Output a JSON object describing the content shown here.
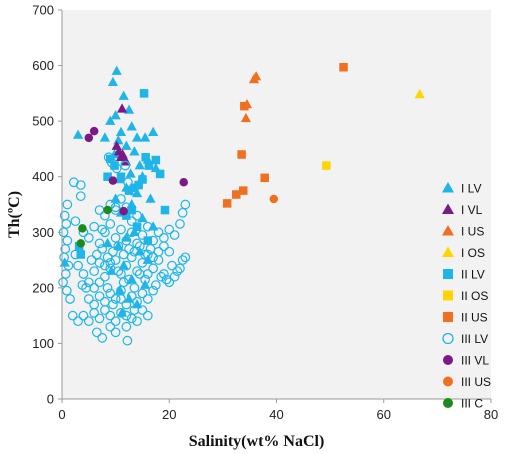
{
  "chart_data": {
    "type": "scatter",
    "title": "",
    "xlabel": "Salinity(wt% NaCl)",
    "ylabel": "Th(ºC)",
    "xlim": [
      0,
      80
    ],
    "ylim": [
      0,
      700
    ],
    "xticks": [
      0,
      20,
      40,
      60,
      80
    ],
    "yticks": [
      0,
      100,
      200,
      300,
      400,
      500,
      600,
      700
    ],
    "grid": false,
    "legend_position": "right",
    "plot_background": "#f2f2f2",
    "series": [
      {
        "name": "I LV",
        "marker": "triangle",
        "filled": true,
        "color": "#1fb5e8",
        "points": [
          [
            9.5,
            570
          ],
          [
            10.2,
            590
          ],
          [
            11.5,
            545
          ],
          [
            12.5,
            520
          ],
          [
            9,
            500
          ],
          [
            10,
            510
          ],
          [
            11,
            480
          ],
          [
            13,
            490
          ],
          [
            8,
            470
          ],
          [
            14,
            470
          ],
          [
            3,
            475
          ],
          [
            10.5,
            465
          ],
          [
            12,
            455
          ],
          [
            15.5,
            470
          ],
          [
            17,
            480
          ],
          [
            13.5,
            445
          ],
          [
            16,
            430
          ],
          [
            9.8,
            440
          ],
          [
            11.8,
            430
          ],
          [
            14.5,
            420
          ],
          [
            10.8,
            395
          ],
          [
            12.8,
            405
          ],
          [
            15,
            400
          ],
          [
            17.5,
            415
          ],
          [
            12,
            380
          ],
          [
            14,
            370
          ],
          [
            10,
            360
          ],
          [
            16.5,
            360
          ],
          [
            13,
            350
          ],
          [
            11,
            335
          ],
          [
            15,
            325
          ],
          [
            17,
            310
          ],
          [
            13.5,
            300
          ],
          [
            12,
            290
          ],
          [
            10.5,
            275
          ],
          [
            8.5,
            280
          ],
          [
            14.5,
            265
          ],
          [
            16,
            250
          ],
          [
            11.5,
            240
          ],
          [
            9.2,
            230
          ],
          [
            13,
            215
          ],
          [
            15.5,
            205
          ],
          [
            10.8,
            195
          ],
          [
            12.5,
            180
          ],
          [
            14,
            170
          ],
          [
            11.2,
            155
          ],
          [
            0.5,
            245
          ]
        ]
      },
      {
        "name": "I VL",
        "marker": "triangle",
        "filled": true,
        "color": "#7b1a86",
        "points": [
          [
            10.2,
            455
          ],
          [
            10.6,
            445
          ],
          [
            11,
            435
          ],
          [
            11.3,
            440
          ],
          [
            11.9,
            427
          ],
          [
            11.2,
            522
          ]
        ]
      },
      {
        "name": "I US",
        "marker": "triangle",
        "filled": true,
        "color": "#f07020",
        "points": [
          [
            34.3,
            505
          ],
          [
            34.5,
            530
          ],
          [
            35.8,
            575
          ],
          [
            36.2,
            580
          ]
        ]
      },
      {
        "name": "I OS",
        "marker": "triangle",
        "filled": true,
        "color": "#ffd400",
        "points": [
          [
            66.7,
            548
          ]
        ]
      },
      {
        "name": "II LV",
        "marker": "square",
        "filled": true,
        "color": "#1fb5e8",
        "points": [
          [
            15.3,
            550
          ],
          [
            3.5,
            260
          ],
          [
            3.2,
            275
          ],
          [
            8.5,
            400
          ],
          [
            9,
            432
          ],
          [
            9.8,
            420
          ],
          [
            11,
            400
          ],
          [
            12.5,
            375
          ],
          [
            13.5,
            380
          ],
          [
            14.3,
            385
          ],
          [
            15,
            395
          ],
          [
            15.6,
            435
          ],
          [
            16.2,
            420
          ],
          [
            17.5,
            430
          ],
          [
            18.3,
            405
          ],
          [
            13,
            340
          ],
          [
            12,
            330
          ],
          [
            14,
            310
          ],
          [
            16,
            285
          ],
          [
            19.2,
            340
          ]
        ]
      },
      {
        "name": "II OS",
        "marker": "square",
        "filled": true,
        "color": "#ffd400",
        "points": [
          [
            49.3,
            420
          ]
        ]
      },
      {
        "name": "II US",
        "marker": "square",
        "filled": true,
        "color": "#f07020",
        "points": [
          [
            30.8,
            352
          ],
          [
            32.5,
            368
          ],
          [
            33.8,
            375
          ],
          [
            33.5,
            440
          ],
          [
            34,
            527
          ],
          [
            37.8,
            398
          ],
          [
            52.5,
            597
          ]
        ]
      },
      {
        "name": "III LV",
        "marker": "circle",
        "filled": false,
        "color": "#1fb5e8",
        "points": [
          [
            0.5,
            330
          ],
          [
            0.8,
            315
          ],
          [
            0.3,
            300
          ],
          [
            1,
            285
          ],
          [
            0.6,
            270
          ],
          [
            0.4,
            255
          ],
          [
            1.2,
            240
          ],
          [
            0.7,
            225
          ],
          [
            0.2,
            210
          ],
          [
            0.9,
            195
          ],
          [
            1.5,
            180
          ],
          [
            2.2,
            390
          ],
          [
            3.5,
            365
          ],
          [
            1,
            350
          ],
          [
            2.5,
            320
          ],
          [
            4,
            300
          ],
          [
            5,
            290
          ],
          [
            6,
            310
          ],
          [
            7,
            280
          ],
          [
            8,
            300
          ],
          [
            9,
            315
          ],
          [
            10,
            290
          ],
          [
            11,
            305
          ],
          [
            12,
            285
          ],
          [
            13,
            300
          ],
          [
            14,
            280
          ],
          [
            15,
            295
          ],
          [
            16,
            310
          ],
          [
            17,
            285
          ],
          [
            18,
            300
          ],
          [
            19,
            290
          ],
          [
            20,
            305
          ],
          [
            21,
            295
          ],
          [
            22,
            315
          ],
          [
            23,
            350
          ],
          [
            22.5,
            335
          ],
          [
            23,
            255
          ],
          [
            22,
            235
          ],
          [
            21,
            220
          ],
          [
            20,
            210
          ],
          [
            3,
            240
          ],
          [
            4,
            225
          ],
          [
            5,
            210
          ],
          [
            6,
            230
          ],
          [
            7,
            245
          ],
          [
            8,
            220
          ],
          [
            9,
            235
          ],
          [
            10,
            250
          ],
          [
            11,
            225
          ],
          [
            12,
            240
          ],
          [
            13,
            255
          ],
          [
            14,
            230
          ],
          [
            15,
            245
          ],
          [
            16,
            260
          ],
          [
            17,
            235
          ],
          [
            18,
            250
          ],
          [
            19,
            225
          ],
          [
            6.5,
            260
          ],
          [
            7.5,
            270
          ],
          [
            8.5,
            255
          ],
          [
            9.5,
            265
          ],
          [
            10.5,
            275
          ],
          [
            11.5,
            260
          ],
          [
            12.5,
            270
          ],
          [
            13.5,
            265
          ],
          [
            14.5,
            275
          ],
          [
            15.5,
            260
          ],
          [
            16.5,
            270
          ],
          [
            5,
            180
          ],
          [
            6,
            170
          ],
          [
            7,
            185
          ],
          [
            8,
            175
          ],
          [
            9,
            190
          ],
          [
            10,
            180
          ],
          [
            11,
            195
          ],
          [
            12,
            170
          ],
          [
            13,
            185
          ],
          [
            14,
            175
          ],
          [
            15,
            190
          ],
          [
            16,
            180
          ],
          [
            17,
            195
          ],
          [
            4,
            150
          ],
          [
            5,
            140
          ],
          [
            6,
            155
          ],
          [
            7,
            145
          ],
          [
            8,
            160
          ],
          [
            9,
            150
          ],
          [
            10,
            140
          ],
          [
            11,
            155
          ],
          [
            12,
            130
          ],
          [
            13,
            145
          ],
          [
            6.5,
            120
          ],
          [
            7.5,
            110
          ],
          [
            12.2,
            105
          ],
          [
            9,
            130
          ],
          [
            10,
            120
          ],
          [
            14,
            140
          ],
          [
            8.5,
            200
          ],
          [
            11.5,
            210
          ],
          [
            13.5,
            200
          ],
          [
            15.5,
            215
          ],
          [
            17.5,
            205
          ],
          [
            4.5,
            200
          ],
          [
            2,
            150
          ],
          [
            3,
            140
          ],
          [
            8,
            330
          ],
          [
            9,
            350
          ],
          [
            10,
            340
          ],
          [
            11,
            360
          ],
          [
            12,
            345
          ],
          [
            7,
            340
          ],
          [
            13,
            320
          ],
          [
            14,
            330
          ],
          [
            6,
            200
          ],
          [
            7,
            210
          ],
          [
            2.5,
            260
          ],
          [
            18.5,
            220
          ],
          [
            19.5,
            215
          ],
          [
            20.5,
            240
          ],
          [
            21.5,
            230
          ],
          [
            22.5,
            250
          ],
          [
            10,
            345
          ],
          [
            7.5,
            305
          ],
          [
            5.5,
            250
          ],
          [
            3.8,
            205
          ],
          [
            16,
            225
          ],
          [
            17,
            255
          ],
          [
            18,
            265
          ],
          [
            19,
            275
          ],
          [
            20,
            265
          ],
          [
            8,
            240
          ],
          [
            9,
            245
          ],
          [
            10.5,
            230
          ],
          [
            12.5,
            215
          ],
          [
            14.5,
            225
          ],
          [
            11,
            180
          ],
          [
            9.5,
            170
          ],
          [
            13.5,
            160
          ],
          [
            12,
            150
          ],
          [
            15,
            160
          ],
          [
            16,
            150
          ],
          [
            3.5,
            385
          ],
          [
            8.7,
            435
          ],
          [
            9.3,
            425
          ],
          [
            10.2,
            415
          ],
          [
            11.8,
            420
          ],
          [
            12.3,
            390
          ],
          [
            13,
            375
          ]
        ]
      },
      {
        "name": "III VL",
        "marker": "circle",
        "filled": true,
        "color": "#7b1a86",
        "points": [
          [
            5,
            470
          ],
          [
            6,
            482
          ],
          [
            9.5,
            393
          ],
          [
            11.5,
            338
          ],
          [
            22.7,
            390
          ]
        ]
      },
      {
        "name": "III US",
        "marker": "circle",
        "filled": true,
        "color": "#f07020",
        "points": [
          [
            39.5,
            360
          ]
        ]
      },
      {
        "name": "III C",
        "marker": "circle",
        "filled": true,
        "color": "#1d8a1d",
        "points": [
          [
            3.8,
            307
          ],
          [
            3.5,
            280
          ],
          [
            8.5,
            340
          ]
        ]
      }
    ]
  }
}
